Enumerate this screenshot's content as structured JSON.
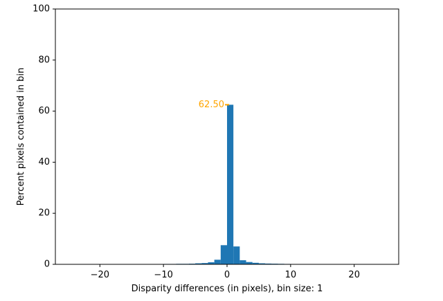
{
  "chart_data": {
    "type": "bar",
    "title": "",
    "xlabel": "Disparity differences (in pixels), bin size: 1",
    "ylabel": "Percent pixels contained in bin",
    "xlim": [
      -27,
      27
    ],
    "ylim": [
      0,
      100
    ],
    "xticks": [
      -20,
      -10,
      0,
      10,
      20
    ],
    "yticks": [
      0,
      20,
      40,
      60,
      80,
      100
    ],
    "bin_size": 1,
    "bar_color": "#1f77b4",
    "bins": [
      {
        "x0": -10,
        "value": 0.15
      },
      {
        "x0": -9,
        "value": 0.15
      },
      {
        "x0": -8,
        "value": 0.2
      },
      {
        "x0": -7,
        "value": 0.2
      },
      {
        "x0": -6,
        "value": 0.25
      },
      {
        "x0": -5,
        "value": 0.4
      },
      {
        "x0": -4,
        "value": 0.5
      },
      {
        "x0": -3,
        "value": 0.8
      },
      {
        "x0": -2,
        "value": 1.8
      },
      {
        "x0": -1,
        "value": 7.5
      },
      {
        "x0": 0,
        "value": 62.5
      },
      {
        "x0": 1,
        "value": 7.0
      },
      {
        "x0": 2,
        "value": 1.6
      },
      {
        "x0": 3,
        "value": 0.9
      },
      {
        "x0": 4,
        "value": 0.6
      },
      {
        "x0": 5,
        "value": 0.4
      },
      {
        "x0": 6,
        "value": 0.3
      },
      {
        "x0": 7,
        "value": 0.25
      },
      {
        "x0": 8,
        "value": 0.2
      },
      {
        "x0": 9,
        "value": 0.15
      }
    ],
    "annotation": {
      "text": "62.50",
      "x": 0,
      "y": 62.5,
      "color": "#ffa500"
    }
  }
}
